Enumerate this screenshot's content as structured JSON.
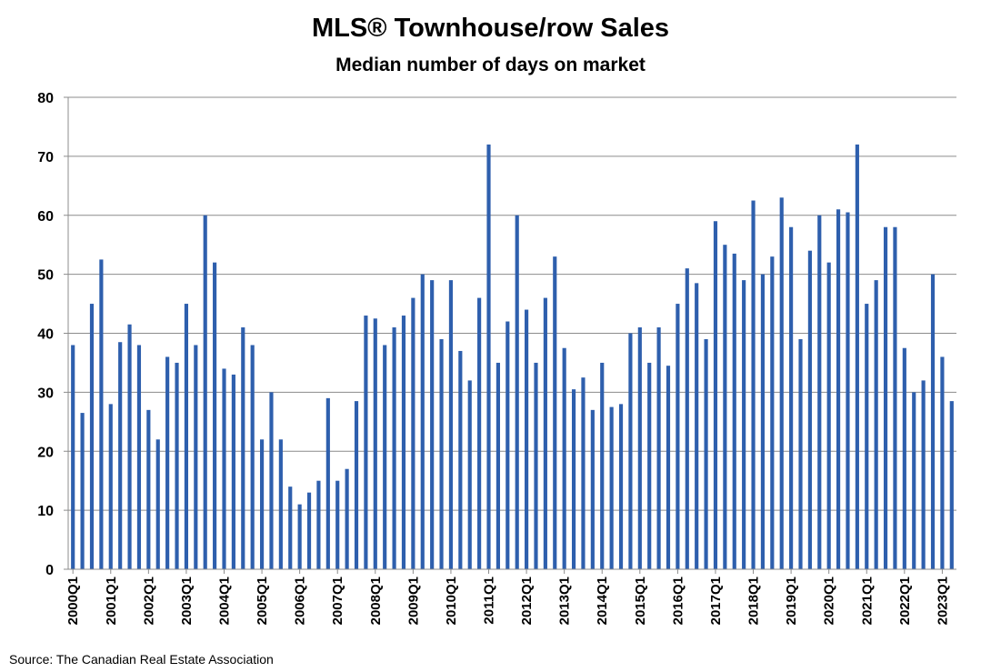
{
  "chart_data": {
    "type": "bar",
    "title": "MLS® Townhouse/row Sales",
    "subtitle": "Median number of days on market",
    "xlabel": "",
    "ylabel": "",
    "ylim": [
      0,
      80
    ],
    "yticks": [
      0,
      10,
      20,
      30,
      40,
      50,
      60,
      70,
      80
    ],
    "grid": true,
    "bar_color": "#2e5fad",
    "categories": [
      "2000Q1",
      "2000Q2",
      "2000Q3",
      "2000Q4",
      "2001Q1",
      "2001Q2",
      "2001Q3",
      "2001Q4",
      "2002Q1",
      "2002Q2",
      "2002Q3",
      "2002Q4",
      "2003Q1",
      "2003Q2",
      "2003Q3",
      "2003Q4",
      "2004Q1",
      "2004Q2",
      "2004Q3",
      "2004Q4",
      "2005Q1",
      "2005Q2",
      "2005Q3",
      "2005Q4",
      "2006Q1",
      "2006Q2",
      "2006Q3",
      "2006Q4",
      "2007Q1",
      "2007Q2",
      "2007Q3",
      "2007Q4",
      "2008Q1",
      "2008Q2",
      "2008Q3",
      "2008Q4",
      "2009Q1",
      "2009Q2",
      "2009Q3",
      "2009Q4",
      "2010Q1",
      "2010Q2",
      "2010Q3",
      "2010Q4",
      "2011Q1",
      "2011Q2",
      "2011Q3",
      "2011Q4",
      "2012Q1",
      "2012Q2",
      "2012Q3",
      "2012Q4",
      "2013Q1",
      "2013Q2",
      "2013Q3",
      "2013Q4",
      "2014Q1",
      "2014Q2",
      "2014Q3",
      "2014Q4",
      "2015Q1",
      "2015Q2",
      "2015Q3",
      "2015Q4",
      "2016Q1",
      "2016Q2",
      "2016Q3",
      "2016Q4",
      "2017Q1",
      "2017Q2",
      "2017Q3",
      "2017Q4",
      "2018Q1",
      "2018Q2",
      "2018Q3",
      "2018Q4",
      "2019Q1",
      "2019Q2",
      "2019Q3",
      "2019Q4",
      "2020Q1",
      "2020Q2",
      "2020Q3",
      "2020Q4",
      "2021Q1",
      "2021Q2",
      "2021Q3",
      "2021Q4",
      "2022Q1",
      "2022Q2",
      "2022Q3",
      "2022Q4",
      "2023Q1",
      "2023Q2"
    ],
    "tick_labels": [
      "2000Q1",
      "2001Q1",
      "2002Q1",
      "2003Q1",
      "2004Q1",
      "2005Q1",
      "2006Q1",
      "2007Q1",
      "2008Q1",
      "2009Q1",
      "2010Q1",
      "2011Q1",
      "2012Q1",
      "2013Q1",
      "2014Q1",
      "2015Q1",
      "2016Q1",
      "2017Q1",
      "2018Q1",
      "2019Q1",
      "2020Q1",
      "2021Q1",
      "2022Q1",
      "2023Q1"
    ],
    "series": [
      {
        "name": "Median number of days on market",
        "values": [
          38,
          26.5,
          45,
          52.5,
          28,
          38.5,
          41.5,
          38,
          27,
          22,
          36,
          35,
          45,
          38,
          60,
          52,
          34,
          33,
          41,
          38,
          22,
          30,
          22,
          14,
          11,
          13,
          15,
          29,
          15,
          17,
          28.5,
          43,
          42.5,
          38,
          41,
          43,
          46,
          50,
          49,
          39,
          49,
          37,
          32,
          46,
          72,
          35,
          42,
          60,
          44,
          35,
          46,
          53,
          37.5,
          30.5,
          32.5,
          27,
          35,
          27.5,
          28,
          40,
          41,
          35,
          41,
          34.5,
          45,
          51,
          48.5,
          39,
          59,
          55,
          53.5,
          49,
          62.5,
          50,
          53,
          63,
          58,
          39,
          54,
          60,
          52,
          61,
          60.5,
          72,
          45,
          49,
          58,
          58,
          37.5,
          30,
          32,
          50,
          36,
          28.5
        ]
      }
    ]
  },
  "source": "Source: The Canadian Real Estate Association"
}
